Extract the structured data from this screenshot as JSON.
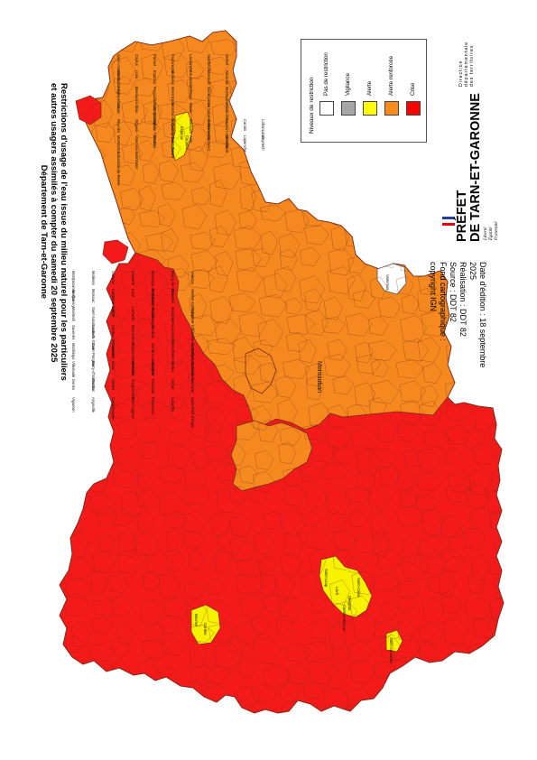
{
  "title": {
    "line1": "Restrictions d'usage de l'eau issue du milieu naturel pour les particuliers",
    "line2": "et autres usagers assimilés à compter du samedi 20 septembre 2025",
    "line3": "Département de Tarn-et-Garonne"
  },
  "credits": {
    "edition_1": "Date d'édition : 18 septembre",
    "edition_2": "2025",
    "realisation": "Réalisation : DDT 82",
    "source": "Source : DDT 82",
    "fond_1": "Fond cartographique :",
    "fond_2": "copyright IGN"
  },
  "prefet": {
    "line1": "PRÉFET",
    "line2": "DE TARN-ET-GARONNE",
    "devise": [
      "Liberté",
      "Égalité",
      "Fraternité"
    ],
    "direction": [
      "Direction",
      "départementale",
      "des territoires"
    ]
  },
  "legend": {
    "title": "Niveaux de restriction",
    "items": [
      {
        "label": "Pas de restriction",
        "color": "#ffffff"
      },
      {
        "label": "Vigilance",
        "color": "#a6a6a6"
      },
      {
        "label": "Alerte",
        "color": "#ffff00"
      },
      {
        "label": "Alerte renforcée",
        "color": "#ff8c1a"
      },
      {
        "label": "Crise",
        "color": "#ff0000"
      }
    ]
  },
  "colors": {
    "crise": "#f51a1a",
    "alerte_renforcee": "#f5891f",
    "alerte": "#f7f200",
    "pas_de_restriction": "#ffffff",
    "border": "#7a2a1a"
  },
  "communes": {
    "orange": [
      "Saint-Antonin-Noble-Val",
      "Caylus",
      "Parisot",
      "Puylaroque",
      "Lavaurette",
      "Septfonds",
      "Verfeil",
      "Ginals",
      "Loze",
      "Espinas",
      "Molières",
      "Caussade",
      "Monteils",
      "Réalville",
      "Nègrepelisse",
      "Bruniquel",
      "Puygaillard-de-Quercy",
      "Montricoux",
      "Vaïssac",
      "Génébrières",
      "Montauban",
      "Léojac",
      "Albias",
      "Saint-Etienne-de-Tulmont",
      "Monclar-de-Quercy",
      "Bioule",
      "La Salvetat-Belmontet",
      "Villebrumier",
      "Reyniès",
      "Orgueil",
      "Nohic",
      "Labastide-Saint-Pierre",
      "Bressols",
      "Corbarieu",
      "Lacourt-Saint-Pierre",
      "Canals",
      "Lafrançaise",
      "Montastruc",
      "Varennes",
      "Mirabel",
      "Saint-Vincent",
      "Auty",
      "Castanet",
      "Mouillac",
      "Lapenche",
      "Cayriech",
      "Labastide-de-Penne",
      "Belmontet"
    ],
    "red": [
      "Montpezat-de-Quercy",
      "Molières",
      "Vazerac",
      "Lauzerte",
      "Montaigu-de-Quercy",
      "Bourg-de-Visa",
      "Valence",
      "Auvillar",
      "Moissac",
      "Castelsarrasin",
      "Lavit",
      "Beaumont-de-Lomagne",
      "Grisolles",
      "Verdun-sur-Garonne",
      "Montech",
      "Saint-Nicolas-de-la-Grave",
      "Lafitte",
      "Larrazet",
      "Fajolles",
      "Escatalens",
      "Finhan",
      "Savenès",
      "Lacourt",
      "Cordes-Tolosannes",
      "Mas-Grenier",
      "Bouillac",
      "Aucamville",
      "Labastide-du-Temple",
      "Monbéqui",
      "Saint-Porquier",
      "Caumont",
      "Cazes-Mondenard",
      "Durfort-Lacapelette",
      "Montbeton",
      "Lamothe-Capdeville",
      "Villemade",
      "Barry-d'Islemade",
      "Lizac",
      "Meauzac",
      "Sérignac",
      "Merles",
      "Goudourville",
      "Dunes",
      "Donzac",
      "Sistels",
      "Garganvillar",
      "Faudoas",
      "Gimat",
      "Larrazet",
      "Vigueron",
      "Angeville",
      "Castelmayran",
      "Saint-Aignan",
      "Puycornet",
      "Labarthe",
      "Saint-Paul-d'Espis"
    ],
    "yellow": [
      "Espinas",
      "Saint-Loup",
      "Lavit",
      "Sérignac",
      "Saint-Cirice",
      "Bourret",
      "Cordes",
      "Saint-Arroumex",
      "Cumont",
      "Castéra-Bouzet"
    ],
    "white": [
      "Varennes"
    ]
  }
}
